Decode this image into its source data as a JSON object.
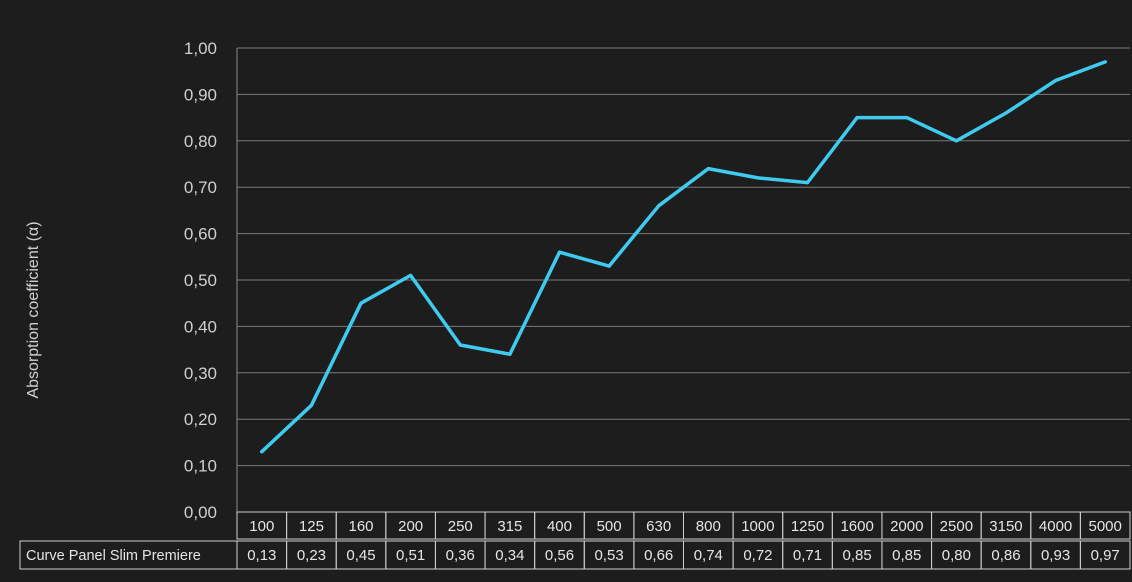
{
  "chart_data": {
    "type": "line",
    "title": "",
    "xlabel": "",
    "ylabel": "Absorption coefficient (α)",
    "ylim": [
      0,
      1.0
    ],
    "yticks": [
      "0,00",
      "0,10",
      "0,20",
      "0,30",
      "0,40",
      "0,50",
      "0,60",
      "0,70",
      "0,80",
      "0,90",
      "1,00"
    ],
    "grid": true,
    "line_color": "#3ecbef",
    "categories": [
      "100",
      "125",
      "160",
      "200",
      "250",
      "315",
      "400",
      "500",
      "630",
      "800",
      "1000",
      "1250",
      "1600",
      "2000",
      "2500",
      "3150",
      "4000",
      "5000"
    ],
    "series": [
      {
        "name": "Curve Panel Slim Premiere",
        "values": [
          0.13,
          0.23,
          0.45,
          0.51,
          0.36,
          0.34,
          0.56,
          0.53,
          0.66,
          0.74,
          0.72,
          0.71,
          0.85,
          0.85,
          0.8,
          0.86,
          0.93,
          0.97
        ],
        "labels": [
          "0,13",
          "0,23",
          "0,45",
          "0,51",
          "0,36",
          "0,34",
          "0,56",
          "0,53",
          "0,66",
          "0,74",
          "0,72",
          "0,71",
          "0,85",
          "0,85",
          "0,80",
          "0,86",
          "0,93",
          "0,97"
        ]
      }
    ]
  }
}
